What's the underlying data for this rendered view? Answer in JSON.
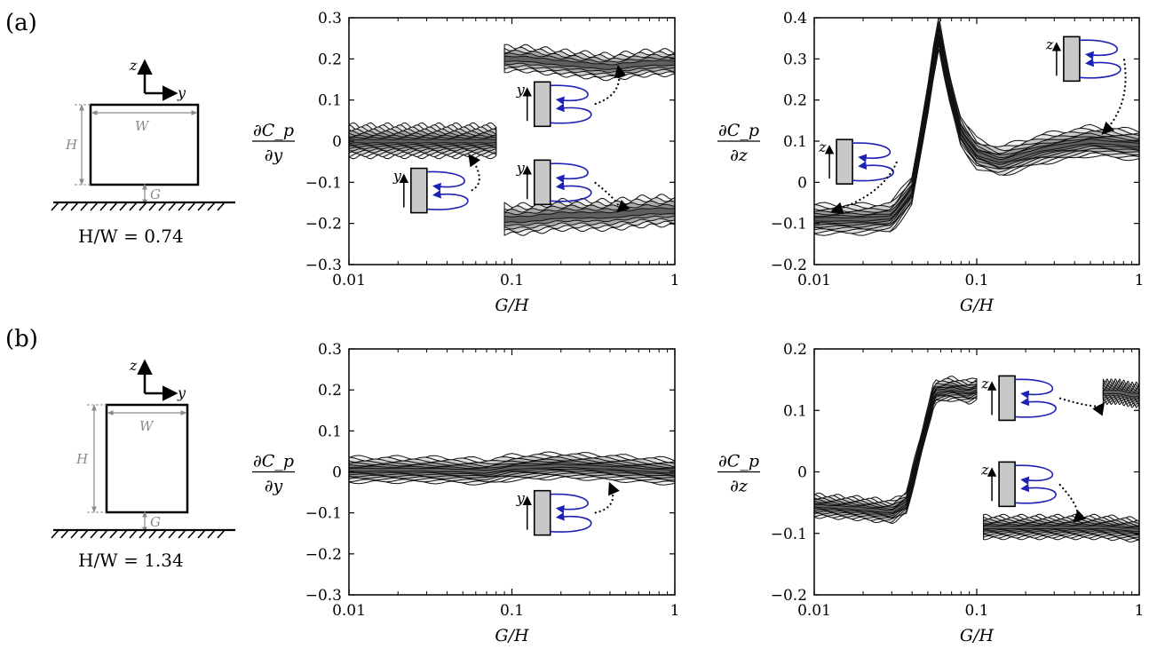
{
  "panel_labels": [
    "(a)",
    "(b)"
  ],
  "schematics": [
    {
      "ratio_label": "H/W = 0.74",
      "H": "H",
      "W": "W",
      "G": "G",
      "axis_z": "z",
      "axis_y": "y"
    },
    {
      "ratio_label": "H/W = 1.34",
      "H": "H",
      "W": "W",
      "G": "G",
      "axis_z": "z",
      "axis_y": "y"
    }
  ],
  "colors": {
    "contour_line": "#111111",
    "fill_light": "#efefef",
    "fill_mid": "#bdbdbd",
    "fill_dark": "#6e6e6e",
    "vortex": "#1e22b4",
    "body_fill": "#c8c8c8"
  },
  "chart_data": [
    {
      "type": "contour",
      "id": "a-dCp-dy",
      "xlabel": "G/H",
      "ylabel_num": "∂C_p",
      "ylabel_den": "∂y",
      "xscale": "log",
      "xlim": [
        0.01,
        1
      ],
      "ylim": [
        -0.3,
        0.3
      ],
      "xticks": [
        0.01,
        0.1,
        1
      ],
      "xtick_labels": [
        "0.01",
        "0.1",
        "1"
      ],
      "yticks": [
        -0.3,
        -0.2,
        -0.1,
        0,
        0.1,
        0.2,
        0.3
      ],
      "ytick_labels": [
        "−0.3",
        "−0.2",
        "−0.1",
        "0",
        "0.1",
        "0.2",
        "0.3"
      ],
      "ridges": [
        {
          "x": [
            0.01,
            0.03,
            0.055,
            0.07,
            0.08
          ],
          "y": [
            0.0,
            0.0,
            0.0,
            0.0,
            0.0
          ],
          "halfwidth": 0.038,
          "levels": 9
        },
        {
          "x": [
            0.09,
            0.12,
            0.2,
            0.4,
            0.7,
            1.0
          ],
          "y": [
            0.2,
            0.2,
            0.19,
            0.18,
            0.19,
            0.19
          ],
          "halfwidth": 0.03,
          "levels": 5
        },
        {
          "x": [
            0.09,
            0.12,
            0.2,
            0.4,
            0.7,
            1.0
          ],
          "y": [
            -0.19,
            -0.19,
            -0.18,
            -0.18,
            -0.17,
            -0.17
          ],
          "halfwidth": 0.035,
          "levels": 5
        }
      ],
      "insets": [
        {
          "axis": "y",
          "x": 0.035,
          "y": -0.12,
          "arrow_to": [
            0.055,
            -0.035
          ]
        },
        {
          "axis": "y",
          "x": 0.2,
          "y": 0.09,
          "arrow_to": [
            0.45,
            0.18
          ]
        },
        {
          "axis": "y",
          "x": 0.2,
          "y": -0.1,
          "arrow_to": [
            0.45,
            -0.17
          ]
        }
      ]
    },
    {
      "type": "contour",
      "id": "a-dCp-dz",
      "xlabel": "G/H",
      "ylabel_num": "∂C_p",
      "ylabel_den": "∂z",
      "xscale": "log",
      "xlim": [
        0.01,
        1
      ],
      "ylim": [
        -0.2,
        0.4
      ],
      "xticks": [
        0.01,
        0.1,
        1
      ],
      "xtick_labels": [
        "0.01",
        "0.1",
        "1"
      ],
      "yticks": [
        -0.2,
        -0.1,
        0,
        0.1,
        0.2,
        0.3,
        0.4
      ],
      "ytick_labels": [
        "−0.2",
        "−0.1",
        "0",
        "0.1",
        "0.2",
        "0.3",
        "0.4"
      ],
      "ridges": [
        {
          "x": [
            0.01,
            0.02,
            0.03,
            0.04,
            0.05,
            0.058,
            0.066,
            0.08,
            0.1,
            0.14,
            0.25,
            0.5,
            1.0
          ],
          "y": [
            -0.09,
            -0.09,
            -0.085,
            -0.02,
            0.2,
            0.37,
            0.25,
            0.12,
            0.07,
            0.05,
            0.08,
            0.1,
            0.09
          ],
          "halfwidth": 0.035,
          "levels": 8
        }
      ],
      "insets": [
        {
          "axis": "z",
          "x": 0.02,
          "y": 0.05,
          "arrow_to": [
            0.013,
            -0.07
          ]
        },
        {
          "axis": "z",
          "x": 0.5,
          "y": 0.3,
          "arrow_to": [
            0.6,
            0.12
          ]
        }
      ]
    },
    {
      "type": "contour",
      "id": "b-dCp-dy",
      "xlabel": "G/H",
      "ylabel_num": "∂C_p",
      "ylabel_den": "∂y",
      "xscale": "log",
      "xlim": [
        0.01,
        1
      ],
      "ylim": [
        -0.3,
        0.3
      ],
      "xticks": [
        0.01,
        0.1,
        1
      ],
      "xtick_labels": [
        "0.01",
        "0.1",
        "1"
      ],
      "yticks": [
        -0.3,
        -0.2,
        -0.1,
        0,
        0.1,
        0.2,
        0.3
      ],
      "ytick_labels": [
        "−0.3",
        "−0.2",
        "−0.1",
        "0",
        "0.1",
        "0.2",
        "0.3"
      ],
      "ridges": [
        {
          "x": [
            0.01,
            0.03,
            0.05,
            0.07,
            0.1,
            0.2,
            0.4,
            1.0
          ],
          "y": [
            0.005,
            0.005,
            0.003,
            0.0,
            0.01,
            0.015,
            0.01,
            0.0
          ],
          "halfwidth": 0.03,
          "levels": 8
        }
      ],
      "insets": [
        {
          "axis": "y",
          "x": 0.2,
          "y": -0.1,
          "arrow_to": [
            0.4,
            -0.03
          ]
        }
      ]
    },
    {
      "type": "contour",
      "id": "b-dCp-dz",
      "xlabel": "G/H",
      "ylabel_num": "∂C_p",
      "ylabel_den": "∂z",
      "xscale": "log",
      "xlim": [
        0.01,
        1
      ],
      "ylim": [
        -0.2,
        0.2
      ],
      "xticks": [
        0.01,
        0.1,
        1
      ],
      "xtick_labels": [
        "0.01",
        "0.1",
        "1"
      ],
      "yticks": [
        -0.2,
        -0.1,
        0,
        0.1,
        0.2
      ],
      "ytick_labels": [
        "−0.2",
        "−0.1",
        "0",
        "0.1",
        "0.2"
      ],
      "ridges": [
        {
          "x": [
            0.01,
            0.02,
            0.03,
            0.037,
            0.045,
            0.055,
            0.07,
            0.09,
            0.1
          ],
          "y": [
            -0.055,
            -0.06,
            -0.065,
            -0.05,
            0.04,
            0.13,
            0.135,
            0.13,
            0.135
          ],
          "halfwidth": 0.018,
          "levels": 8
        },
        {
          "x": [
            0.11,
            0.15,
            0.25,
            0.4,
            0.6,
            1.0
          ],
          "y": [
            -0.09,
            -0.09,
            -0.09,
            -0.09,
            -0.09,
            -0.095
          ],
          "halfwidth": 0.018,
          "levels": 8
        },
        {
          "x": [
            0.6,
            0.75,
            0.9,
            1.0
          ],
          "y": [
            0.13,
            0.13,
            0.125,
            0.125
          ],
          "halfwidth": 0.018,
          "levels": 6
        }
      ],
      "insets": [
        {
          "axis": "z",
          "x": 0.2,
          "y": 0.12,
          "arrow_to": [
            0.6,
            0.11
          ]
        },
        {
          "axis": "z",
          "x": 0.2,
          "y": -0.02,
          "arrow_to": [
            0.4,
            -0.08
          ]
        }
      ]
    }
  ]
}
